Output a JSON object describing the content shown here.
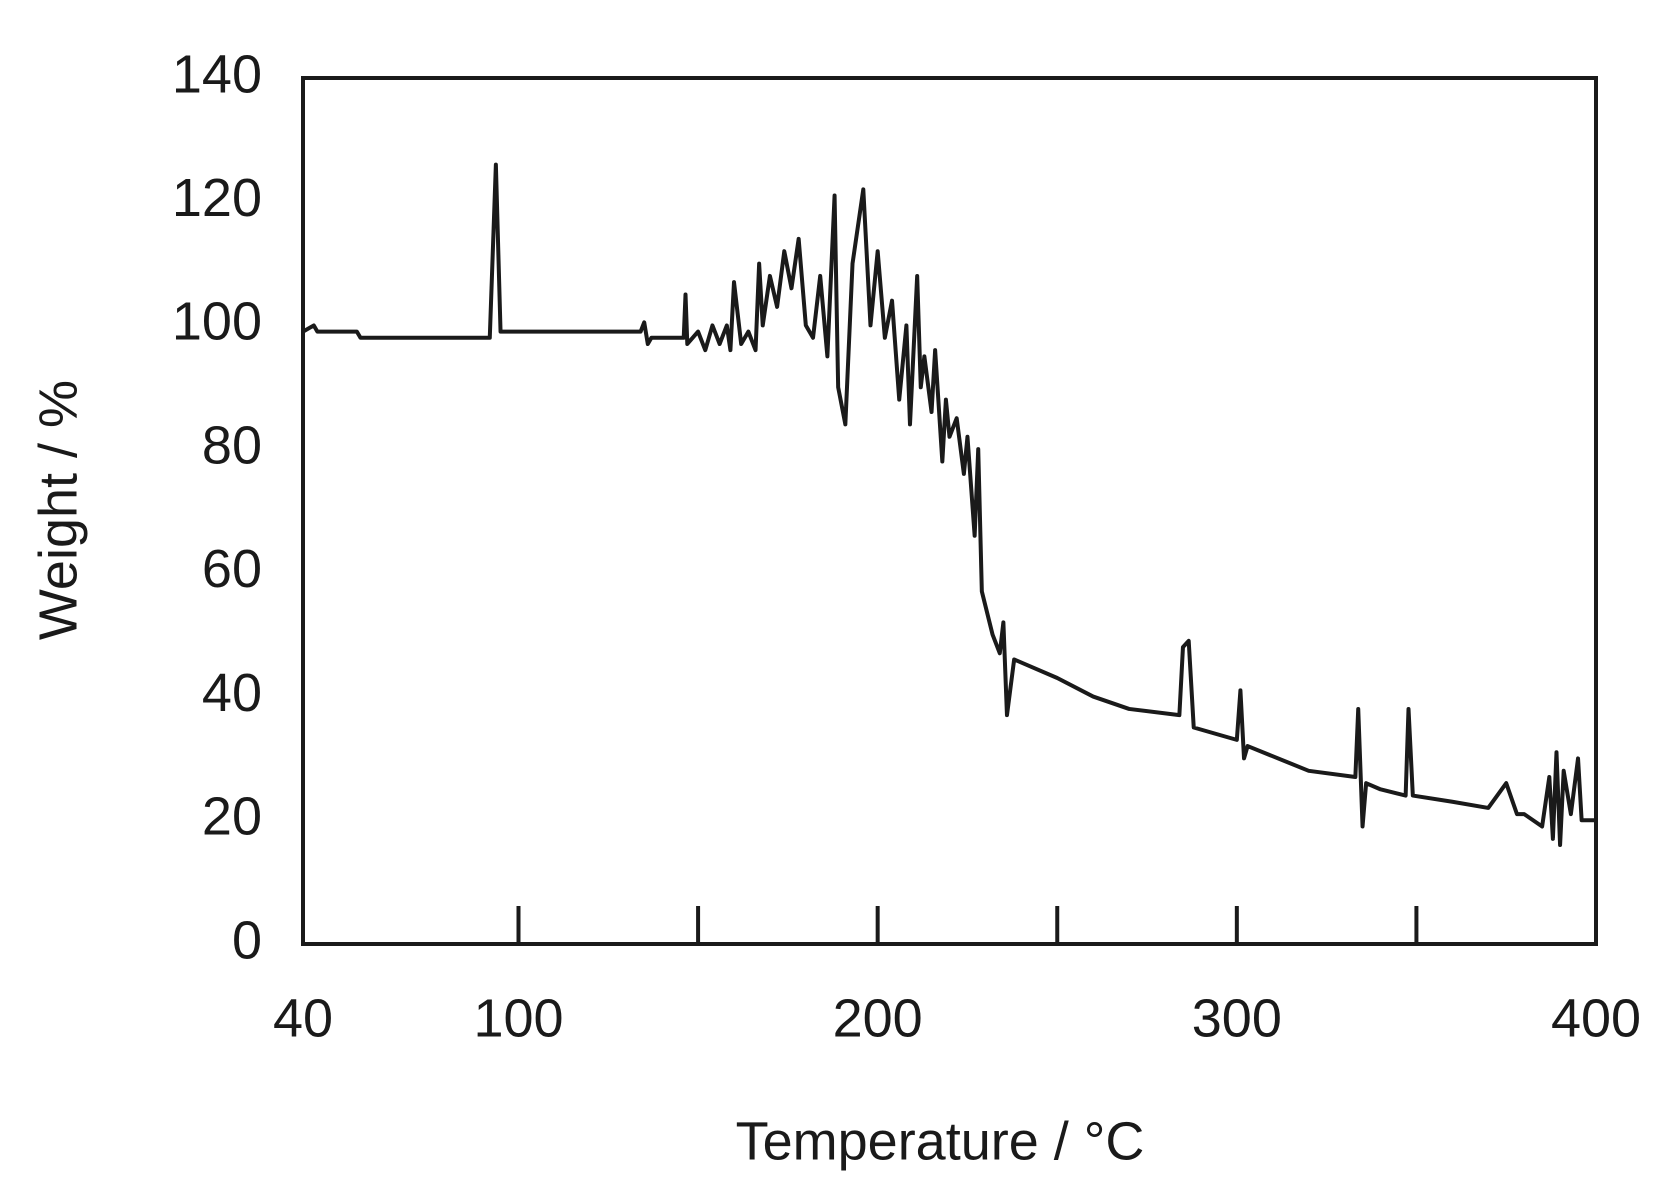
{
  "chart_data": {
    "type": "line",
    "xlabel": "Temperature / °C",
    "ylabel": "Weight / %",
    "x": [
      40,
      43,
      44,
      45,
      55,
      56,
      92,
      93.7,
      95,
      134,
      135,
      136,
      137,
      140,
      146,
      146.5,
      147,
      150,
      152,
      154,
      156,
      158,
      159,
      160,
      162,
      164,
      166,
      167,
      168,
      170,
      172,
      174,
      176,
      178,
      180,
      182,
      184,
      186,
      188,
      189,
      191,
      193,
      196,
      198,
      200,
      202,
      204,
      206,
      208,
      209,
      211,
      212,
      213,
      215,
      216,
      218,
      219,
      220,
      222,
      224,
      225,
      227,
      228,
      229,
      232,
      234,
      235,
      236,
      238,
      250,
      260,
      270,
      284,
      285,
      286.6,
      288,
      300,
      301,
      302,
      303,
      320,
      333,
      333.8,
      335,
      336,
      340,
      347,
      347.8,
      349,
      360,
      370,
      375,
      378,
      380,
      385,
      387,
      388,
      389,
      390,
      391,
      393,
      395,
      396,
      400
    ],
    "values": [
      99,
      100,
      99,
      99,
      99,
      98,
      98,
      126,
      99,
      99,
      100.5,
      97,
      98,
      98,
      98,
      105,
      97,
      99,
      96,
      100,
      97,
      100,
      96,
      107,
      97,
      99,
      96,
      110,
      100,
      108,
      103,
      112,
      106,
      114,
      100,
      98,
      108,
      95,
      121,
      90,
      84,
      110,
      122,
      100,
      112,
      98,
      104,
      88,
      100,
      84,
      108,
      90,
      95,
      86,
      96,
      78,
      88,
      82,
      85,
      76,
      82,
      66,
      80,
      57,
      50,
      47,
      52,
      37,
      46,
      43,
      40,
      38,
      37,
      48,
      49,
      35,
      33,
      41,
      30,
      32,
      28,
      27,
      38,
      19,
      26,
      25,
      24,
      38,
      24,
      23,
      22,
      26,
      21,
      21,
      19,
      27,
      17,
      31,
      16,
      28,
      21,
      30,
      20,
      20
    ],
    "color": "#1a1a1a",
    "xlim": [
      40,
      400
    ],
    "xticks": [
      40,
      100,
      200,
      300,
      400
    ],
    "xminorticks": [
      150,
      250,
      350
    ],
    "ylim": [
      0,
      140
    ],
    "yticks": [
      0,
      20,
      40,
      60,
      80,
      100,
      120,
      140
    ],
    "grid": false
  }
}
